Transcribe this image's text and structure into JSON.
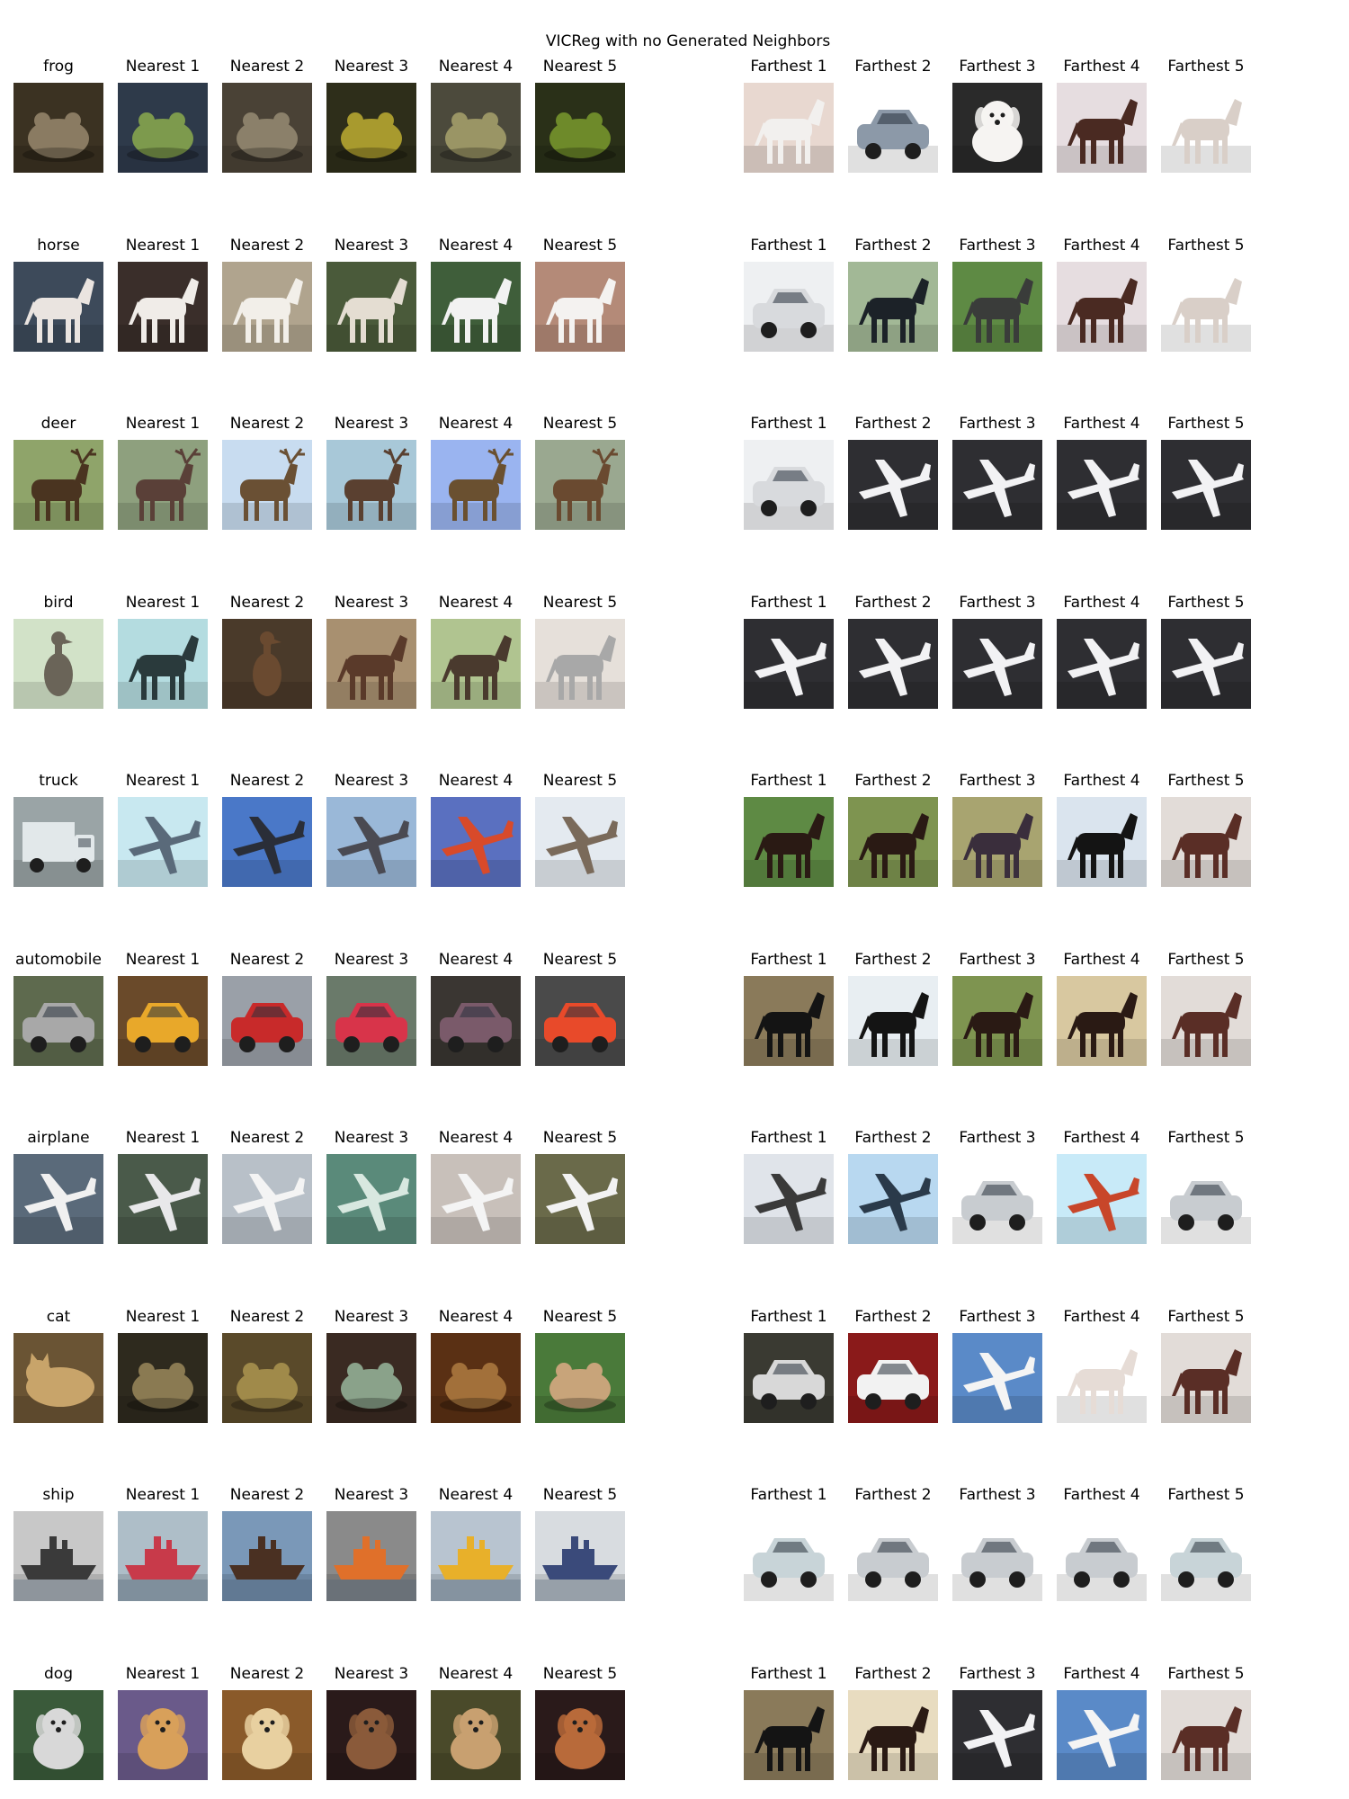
{
  "title": "VICReg with no Generated Neighbors",
  "column_labels": {
    "nearest": [
      "Nearest 1",
      "Nearest 2",
      "Nearest 3",
      "Nearest 4",
      "Nearest 5"
    ],
    "farthest": [
      "Farthest 1",
      "Farthest 2",
      "Farthest 3",
      "Farthest 4",
      "Farthest 5"
    ]
  },
  "rows": [
    {
      "query": {
        "label": "frog",
        "subject": "frog",
        "bg": "#3b3222",
        "fg": "#8a7b62"
      },
      "nearest": [
        {
          "subject": "frog",
          "bg": "#2e3a4a",
          "fg": "#7d9a4d"
        },
        {
          "subject": "frog",
          "bg": "#4a4236",
          "fg": "#8b806a"
        },
        {
          "subject": "frog",
          "bg": "#2e2e1a",
          "fg": "#a89a2e"
        },
        {
          "subject": "frog",
          "bg": "#4c4a3c",
          "fg": "#9a9565"
        },
        {
          "subject": "frog",
          "bg": "#2a3018",
          "fg": "#6e8a2a"
        }
      ],
      "farthest": [
        {
          "subject": "horse",
          "bg": "#e8d8d0",
          "fg": "#f2f0ee"
        },
        {
          "subject": "car",
          "bg": "#ffffff",
          "fg": "#8c99a8"
        },
        {
          "subject": "dog",
          "bg": "#2a2a2a",
          "fg": "#f6f4f2"
        },
        {
          "subject": "horse",
          "bg": "#e6dde0",
          "fg": "#4a2a22"
        },
        {
          "subject": "horse",
          "bg": "#ffffff",
          "fg": "#d9cfc8"
        }
      ]
    },
    {
      "query": {
        "label": "horse",
        "subject": "horse",
        "bg": "#3d4a5a",
        "fg": "#eae4e0"
      },
      "nearest": [
        {
          "subject": "horse",
          "bg": "#3a2e2a",
          "fg": "#f0ece8"
        },
        {
          "subject": "horse",
          "bg": "#b0a48e",
          "fg": "#f2efe9"
        },
        {
          "subject": "horse",
          "bg": "#4a5a3a",
          "fg": "#e4ddd2"
        },
        {
          "subject": "horse",
          "bg": "#3f5e3a",
          "fg": "#f2f2f2"
        },
        {
          "subject": "horse",
          "bg": "#b48a78",
          "fg": "#f4f2f0"
        }
      ],
      "farthest": [
        {
          "subject": "car",
          "bg": "#eef0f2",
          "fg": "#d8dadd"
        },
        {
          "subject": "horse",
          "bg": "#a2b896",
          "fg": "#1c2228"
        },
        {
          "subject": "horse",
          "bg": "#5e8a44",
          "fg": "#3a3c3a"
        },
        {
          "subject": "horse",
          "bg": "#e6dde0",
          "fg": "#4a2a22"
        },
        {
          "subject": "horse",
          "bg": "#ffffff",
          "fg": "#d9cfc8"
        }
      ]
    },
    {
      "query": {
        "label": "deer",
        "subject": "deer",
        "bg": "#8fa46a",
        "fg": "#4a3420"
      },
      "nearest": [
        {
          "subject": "deer",
          "bg": "#8ea07e",
          "fg": "#5a4038"
        },
        {
          "subject": "deer",
          "bg": "#c8dcf0",
          "fg": "#6a5034"
        },
        {
          "subject": "deer",
          "bg": "#a8c8d8",
          "fg": "#5a4030"
        },
        {
          "subject": "deer",
          "bg": "#9ab4f0",
          "fg": "#6a5030"
        },
        {
          "subject": "deer",
          "bg": "#9aa890",
          "fg": "#6a4a30"
        }
      ],
      "farthest": [
        {
          "subject": "car",
          "bg": "#eef0f2",
          "fg": "#d8dadd"
        },
        {
          "subject": "airplane",
          "bg": "#2e2e32",
          "fg": "#f2f2f4"
        },
        {
          "subject": "airplane",
          "bg": "#2e2e32",
          "fg": "#f2f2f4"
        },
        {
          "subject": "airplane",
          "bg": "#2e2e32",
          "fg": "#f2f2f4"
        },
        {
          "subject": "airplane",
          "bg": "#2e2e32",
          "fg": "#f2f2f4"
        }
      ]
    },
    {
      "query": {
        "label": "bird",
        "subject": "bird",
        "bg": "#d2e2c8",
        "fg": "#6a6458"
      },
      "nearest": [
        {
          "subject": "horse",
          "bg": "#b4dce0",
          "fg": "#2a3a3c"
        },
        {
          "subject": "bird",
          "bg": "#4a3a2a",
          "fg": "#6a4a30"
        },
        {
          "subject": "horse",
          "bg": "#a89070",
          "fg": "#5a3a2a"
        },
        {
          "subject": "horse",
          "bg": "#b0c490",
          "fg": "#4a3a2e"
        },
        {
          "subject": "horse",
          "bg": "#e6e0da",
          "fg": "#a8a8a8"
        }
      ],
      "farthest": [
        {
          "subject": "airplane",
          "bg": "#2e2e32",
          "fg": "#f2f2f4"
        },
        {
          "subject": "airplane",
          "bg": "#2e2e32",
          "fg": "#f2f2f4"
        },
        {
          "subject": "airplane",
          "bg": "#2e2e32",
          "fg": "#f2f2f4"
        },
        {
          "subject": "airplane",
          "bg": "#2e2e32",
          "fg": "#f2f2f4"
        },
        {
          "subject": "airplane",
          "bg": "#2e2e32",
          "fg": "#f2f2f4"
        }
      ]
    },
    {
      "query": {
        "label": "truck",
        "subject": "truck",
        "bg": "#9aa4a6",
        "fg": "#e2e8ea"
      },
      "nearest": [
        {
          "subject": "airplane",
          "bg": "#c8e8f0",
          "fg": "#5a6a7a"
        },
        {
          "subject": "airplane",
          "bg": "#4a78c8",
          "fg": "#2a2e38"
        },
        {
          "subject": "airplane",
          "bg": "#9ab8d8",
          "fg": "#4a4a52"
        },
        {
          "subject": "airplane",
          "bg": "#5a70c0",
          "fg": "#d84a2a"
        },
        {
          "subject": "airplane",
          "bg": "#e4eaf0",
          "fg": "#7a6a5a"
        }
      ],
      "farthest": [
        {
          "subject": "horse",
          "bg": "#5e8a44",
          "fg": "#2a1a14"
        },
        {
          "subject": "horse",
          "bg": "#7e9450",
          "fg": "#2a1a14"
        },
        {
          "subject": "horse",
          "bg": "#a8a470",
          "fg": "#3a2e3c"
        },
        {
          "subject": "horse",
          "bg": "#dae4ee",
          "fg": "#141414"
        },
        {
          "subject": "horse",
          "bg": "#e2dcd8",
          "fg": "#5a2e26"
        }
      ]
    },
    {
      "query": {
        "label": "automobile",
        "subject": "car",
        "bg": "#5e6a4e",
        "fg": "#a8a8a8"
      },
      "nearest": [
        {
          "subject": "car",
          "bg": "#6a4a2a",
          "fg": "#e8a82a"
        },
        {
          "subject": "car",
          "bg": "#9aa0a8",
          "fg": "#c82a2a"
        },
        {
          "subject": "car",
          "bg": "#6a7a6a",
          "fg": "#d8344a"
        },
        {
          "subject": "car",
          "bg": "#3a3632",
          "fg": "#7a5a6a"
        },
        {
          "subject": "car",
          "bg": "#4a4a4a",
          "fg": "#e84a2a"
        }
      ],
      "farthest": [
        {
          "subject": "horse",
          "bg": "#8a7a5a",
          "fg": "#141414"
        },
        {
          "subject": "horse",
          "bg": "#e8eef2",
          "fg": "#141414"
        },
        {
          "subject": "horse",
          "bg": "#7e9450",
          "fg": "#2a1a14"
        },
        {
          "subject": "horse",
          "bg": "#d8c8a0",
          "fg": "#2a1a14"
        },
        {
          "subject": "horse",
          "bg": "#e2dcd8",
          "fg": "#5a2e26"
        }
      ]
    },
    {
      "query": {
        "label": "airplane",
        "subject": "airplane",
        "bg": "#5a6a7a",
        "fg": "#f0f0f0"
      },
      "nearest": [
        {
          "subject": "airplane",
          "bg": "#4a5a4a",
          "fg": "#e8e8ea"
        },
        {
          "subject": "airplane",
          "bg": "#b8c0c8",
          "fg": "#f4f4f4"
        },
        {
          "subject": "airplane",
          "bg": "#5a8a7a",
          "fg": "#d8e8e0"
        },
        {
          "subject": "airplane",
          "bg": "#c8c0ba",
          "fg": "#f4f4f4"
        },
        {
          "subject": "airplane",
          "bg": "#6a6a4a",
          "fg": "#f2f2f2"
        }
      ],
      "farthest": [
        {
          "subject": "airplane",
          "bg": "#e0e4ea",
          "fg": "#3a3a3a"
        },
        {
          "subject": "airplane",
          "bg": "#b8d8f0",
          "fg": "#2a3a4a"
        },
        {
          "subject": "car",
          "bg": "#ffffff",
          "fg": "#c8ccd0"
        },
        {
          "subject": "airplane",
          "bg": "#c8eaf8",
          "fg": "#c8462a"
        },
        {
          "subject": "car",
          "bg": "#ffffff",
          "fg": "#c8ccd0"
        }
      ]
    },
    {
      "query": {
        "label": "cat",
        "subject": "cat",
        "bg": "#6a5434",
        "fg": "#c8a46a"
      },
      "nearest": [
        {
          "subject": "frog",
          "bg": "#2e2a1e",
          "fg": "#8a7a52"
        },
        {
          "subject": "frog",
          "bg": "#5a4a2a",
          "fg": "#a08a4a"
        },
        {
          "subject": "frog",
          "bg": "#3a2a22",
          "fg": "#8aa28a"
        },
        {
          "subject": "frog",
          "bg": "#5a3014",
          "fg": "#a2703a"
        },
        {
          "subject": "frog",
          "bg": "#4a7a3a",
          "fg": "#c8a47a"
        }
      ],
      "farthest": [
        {
          "subject": "car",
          "bg": "#3a3a32",
          "fg": "#d8d8d8"
        },
        {
          "subject": "car",
          "bg": "#8a1a1a",
          "fg": "#f2f2f2"
        },
        {
          "subject": "airplane",
          "bg": "#5a8ac8",
          "fg": "#f4f4f4"
        },
        {
          "subject": "horse",
          "bg": "#ffffff",
          "fg": "#e6dcd6"
        },
        {
          "subject": "horse",
          "bg": "#e2dcd8",
          "fg": "#5a2e26"
        }
      ]
    },
    {
      "query": {
        "label": "ship",
        "subject": "ship",
        "bg": "#c8c8c8",
        "fg": "#3a3a3a"
      },
      "nearest": [
        {
          "subject": "ship",
          "bg": "#aebec8",
          "fg": "#c83a4a"
        },
        {
          "subject": "ship",
          "bg": "#7a98b8",
          "fg": "#4a3022"
        },
        {
          "subject": "ship",
          "bg": "#8a8a8a",
          "fg": "#e0702a"
        },
        {
          "subject": "ship",
          "bg": "#b8c4d0",
          "fg": "#e8b02a"
        },
        {
          "subject": "ship",
          "bg": "#d8dce0",
          "fg": "#3a4a7a"
        }
      ],
      "farthest": [
        {
          "subject": "car",
          "bg": "#ffffff",
          "fg": "#c8d4d8"
        },
        {
          "subject": "car",
          "bg": "#ffffff",
          "fg": "#c8ccd0"
        },
        {
          "subject": "car",
          "bg": "#ffffff",
          "fg": "#c8ccd0"
        },
        {
          "subject": "car",
          "bg": "#ffffff",
          "fg": "#c8ccd0"
        },
        {
          "subject": "car",
          "bg": "#ffffff",
          "fg": "#c8d4d8"
        }
      ]
    },
    {
      "query": {
        "label": "dog",
        "subject": "dog",
        "bg": "#3a5a3a",
        "fg": "#d8d8d8"
      },
      "nearest": [
        {
          "subject": "dog",
          "bg": "#6a5a8a",
          "fg": "#d8a05a"
        },
        {
          "subject": "dog",
          "bg": "#8a5a2a",
          "fg": "#e8d0a0"
        },
        {
          "subject": "dog",
          "bg": "#2a1a1a",
          "fg": "#8a5a3a"
        },
        {
          "subject": "dog",
          "bg": "#4a4a2a",
          "fg": "#c8a070"
        },
        {
          "subject": "dog",
          "bg": "#2a1a1a",
          "fg": "#b86a3a"
        }
      ],
      "farthest": [
        {
          "subject": "horse",
          "bg": "#8a7a5a",
          "fg": "#141414"
        },
        {
          "subject": "horse",
          "bg": "#e8dcc0",
          "fg": "#2a1a14"
        },
        {
          "subject": "airplane",
          "bg": "#2e2e32",
          "fg": "#f2f2f4"
        },
        {
          "subject": "airplane",
          "bg": "#5a8ac8",
          "fg": "#f4f4f4"
        },
        {
          "subject": "horse",
          "bg": "#e2dcd8",
          "fg": "#5a2e26"
        }
      ]
    }
  ]
}
